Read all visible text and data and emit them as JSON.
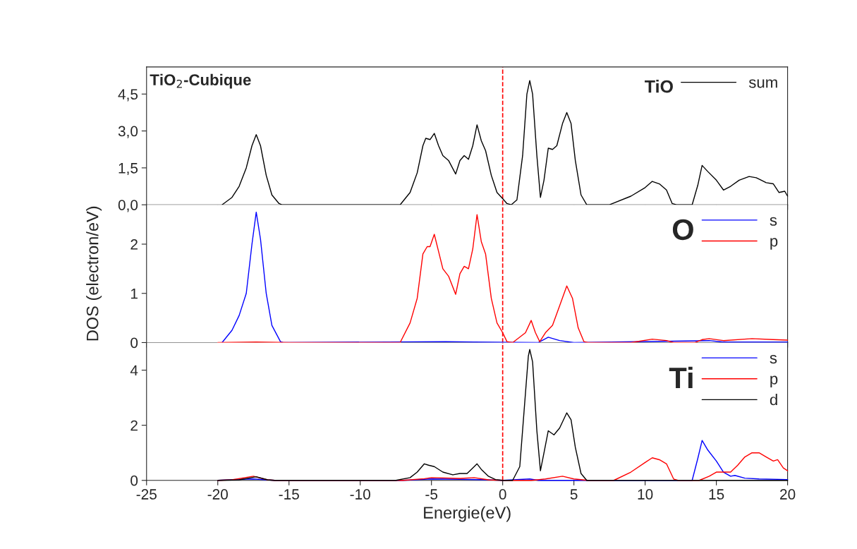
{
  "chart_data": [
    {
      "type": "line",
      "title": "TiO$_{2}$-Cubique",
      "legend_title": "TiO",
      "legend": "top right",
      "xlim": [
        -25,
        20
      ],
      "xticks": [
        -25,
        -20,
        -15,
        -10,
        -5,
        0,
        5,
        10,
        15,
        20
      ],
      "ylim": [
        0,
        5.6
      ],
      "yticks": [
        {
          "value": 0,
          "label": "0,0"
        },
        {
          "value": 1.5,
          "label": "1,5"
        },
        {
          "value": 3.0,
          "label": "3,0"
        },
        {
          "value": 4.5,
          "label": "4,5"
        }
      ],
      "tick_labels": "y",
      "grid": false,
      "ref_lines": [
        {
          "axis": "x",
          "value": 0,
          "color": "#ff0000",
          "line_style": "dashed"
        }
      ],
      "series": [
        {
          "name": "sum",
          "color": "#000000",
          "x": [
            -19.7,
            -19,
            -18.5,
            -18,
            -17.6,
            -17.3,
            -17.0,
            -16.6,
            -16.2,
            -15.7,
            -15.5,
            -7.2,
            -6.5,
            -6,
            -5.6,
            -5.4,
            -5.1,
            -4.8,
            -4.5,
            -4.2,
            -3.8,
            -3.3,
            -3.0,
            -2.7,
            -2.4,
            -2.1,
            -1.8,
            -1.5,
            -1.2,
            -0.8,
            -0.4,
            0,
            0.3,
            0.6,
            1.0,
            1.4,
            1.7,
            1.9,
            2.1,
            2.4,
            2.65,
            2.9,
            3.2,
            3.5,
            3.8,
            4.2,
            4.5,
            4.8,
            5.1,
            5.5,
            5.9,
            7.5,
            9,
            10,
            10.5,
            11,
            11.5,
            11.9,
            12.2,
            13.3,
            13.7,
            14.0,
            14.4,
            15,
            15.5,
            16,
            16.6,
            17.3,
            17.8,
            18.5,
            19.0,
            19.4,
            19.8,
            20
          ],
          "values": [
            0,
            0.3,
            0.75,
            1.5,
            2.4,
            2.85,
            2.4,
            1.2,
            0.4,
            0.05,
            0,
            0,
            0.5,
            1.3,
            2.4,
            2.7,
            2.65,
            2.9,
            2.4,
            2.0,
            1.8,
            1.25,
            1.8,
            2.0,
            1.85,
            2.4,
            3.25,
            2.6,
            2.2,
            1.2,
            0.5,
            0.25,
            0.05,
            0,
            0.2,
            2.0,
            4.5,
            5.05,
            4.5,
            2.0,
            0.3,
            1.0,
            2.3,
            2.25,
            2.4,
            3.3,
            3.75,
            3.3,
            1.8,
            0.4,
            0,
            0,
            0.35,
            0.7,
            0.95,
            0.85,
            0.6,
            0.05,
            0,
            0,
            0.8,
            1.6,
            1.35,
            1.0,
            0.6,
            0.75,
            1.0,
            1.15,
            1.1,
            0.9,
            0.85,
            0.5,
            0.55,
            0.35
          ]
        }
      ]
    },
    {
      "type": "line",
      "legend_title": "O",
      "legend": "top right",
      "ylabel": "DOS (electron/eV)",
      "xlim": [
        -25,
        20
      ],
      "xticks": [
        -25,
        -20,
        -15,
        -10,
        -5,
        0,
        5,
        10,
        15,
        20
      ],
      "ylim": [
        0,
        2.8
      ],
      "yticks": [
        0,
        1,
        2
      ],
      "tick_labels": "y",
      "grid": false,
      "ref_lines": [
        {
          "axis": "x",
          "value": 0,
          "color": "#ff0000",
          "line_style": "dashed"
        }
      ],
      "series": [
        {
          "name": "s",
          "color": "#0000ff",
          "x": [
            -19.7,
            -19,
            -18.5,
            -18,
            -17.6,
            -17.3,
            -17.0,
            -16.6,
            -16.2,
            -15.6,
            -15.4,
            -4,
            -2,
            2.5,
            3.2,
            4,
            5,
            14.5,
            15.5,
            20
          ],
          "values": [
            0,
            0.25,
            0.55,
            1.0,
            2.0,
            2.65,
            2.1,
            1.0,
            0.35,
            0.02,
            0,
            0.02,
            0.01,
            0,
            0.11,
            0.04,
            0,
            0.04,
            0.01,
            0.01
          ]
        },
        {
          "name": "p",
          "color": "#ff0000",
          "x": [
            -20,
            -17.3,
            -15,
            -7.2,
            -6.5,
            -6,
            -5.6,
            -5.3,
            -5.1,
            -4.8,
            -4.5,
            -4.2,
            -3.8,
            -3.3,
            -3.0,
            -2.7,
            -2.4,
            -2.1,
            -1.8,
            -1.5,
            -1.2,
            -0.8,
            -0.4,
            0,
            0.3,
            0.7,
            1.6,
            2.0,
            2.3,
            2.6,
            3.0,
            3.5,
            4.0,
            4.5,
            4.9,
            5.3,
            5.7,
            6,
            9,
            10.5,
            11.5,
            12,
            13.5,
            14,
            14.5,
            15.5,
            17.5,
            19,
            20
          ],
          "values": [
            0,
            0.01,
            0,
            0,
            0.4,
            0.9,
            1.8,
            1.95,
            1.95,
            2.2,
            1.85,
            1.5,
            1.35,
            0.98,
            1.4,
            1.55,
            1.5,
            1.9,
            2.6,
            2.05,
            1.8,
            0.9,
            0.4,
            0.2,
            0.02,
            0,
            0.2,
            0.45,
            0.2,
            0.02,
            0.2,
            0.35,
            0.75,
            1.15,
            0.9,
            0.3,
            0.02,
            0,
            0,
            0.07,
            0.04,
            0,
            0,
            0.06,
            0.08,
            0.04,
            0.08,
            0.06,
            0.05
          ]
        }
      ]
    },
    {
      "type": "line",
      "legend_title": "Ti",
      "legend": "top right",
      "xlabel": "Energie(eV)",
      "xlim": [
        -25,
        20
      ],
      "xticks": [
        -25,
        -20,
        -15,
        -10,
        -5,
        0,
        5,
        10,
        15,
        20
      ],
      "ylim": [
        0,
        5
      ],
      "yticks": [
        0,
        2,
        4
      ],
      "grid": false,
      "ref_lines": [
        {
          "axis": "x",
          "value": 0,
          "color": "#ff0000",
          "line_style": "dashed"
        }
      ],
      "series": [
        {
          "name": "s",
          "color": "#0000ff",
          "x": [
            -20,
            -19,
            -17.5,
            -16,
            -7,
            -5,
            -3,
            -1,
            0,
            1.9,
            2.5,
            13.3,
            13.7,
            14.0,
            14.4,
            15,
            15.5,
            16.0,
            16.3,
            17,
            18,
            20
          ],
          "values": [
            0,
            0.03,
            0.05,
            0,
            0,
            0.05,
            0.04,
            0.02,
            0,
            0.05,
            0,
            0,
            0.8,
            1.45,
            1.1,
            0.7,
            0.3,
            0.15,
            0.18,
            0.08,
            0.05,
            0.03
          ]
        },
        {
          "name": "p",
          "color": "#ff0000",
          "x": [
            -20,
            -19,
            -17.5,
            -16.5,
            -16,
            -7,
            -5.5,
            -5,
            -3,
            -2,
            -1,
            0,
            2,
            3,
            4.2,
            5,
            6,
            7.8,
            9,
            10,
            10.5,
            11,
            11.5,
            12,
            12.3,
            13.8,
            14.5,
            15,
            16,
            16.5,
            17,
            17.5,
            18,
            18.5,
            19,
            19.3,
            19.7,
            20
          ],
          "values": [
            0,
            0.02,
            0.15,
            0.02,
            0,
            0,
            0.06,
            0.1,
            0.07,
            0.1,
            0.02,
            0,
            0,
            0.05,
            0.15,
            0.05,
            0,
            0,
            0.3,
            0.65,
            0.82,
            0.75,
            0.6,
            0.05,
            0,
            0,
            0.15,
            0.3,
            0.3,
            0.55,
            0.85,
            1.0,
            1.0,
            0.85,
            0.7,
            0.75,
            0.45,
            0.35
          ]
        },
        {
          "name": "d",
          "color": "#000000",
          "x": [
            -20,
            -18.5,
            -17.3,
            -16.5,
            -16,
            -7.5,
            -6.5,
            -6,
            -5.5,
            -5.2,
            -4.8,
            -4.2,
            -3.5,
            -3,
            -2.5,
            -2.1,
            -1.8,
            -1.5,
            -1,
            -0.5,
            0,
            0.7,
            1.2,
            1.5,
            1.8,
            1.9,
            2.1,
            2.4,
            2.65,
            2.9,
            3.2,
            3.6,
            4.0,
            4.5,
            4.8,
            5.1,
            5.5,
            5.9,
            20
          ],
          "values": [
            0,
            0.02,
            0.13,
            0.02,
            0,
            0,
            0.1,
            0.3,
            0.6,
            0.55,
            0.5,
            0.3,
            0.2,
            0.25,
            0.25,
            0.45,
            0.6,
            0.4,
            0.15,
            0.03,
            0,
            0,
            0.5,
            2.5,
            4.5,
            4.75,
            4.3,
            1.8,
            0.35,
            1.0,
            1.8,
            1.65,
            1.9,
            2.45,
            2.2,
            1.2,
            0.25,
            0,
            0
          ]
        }
      ]
    }
  ]
}
